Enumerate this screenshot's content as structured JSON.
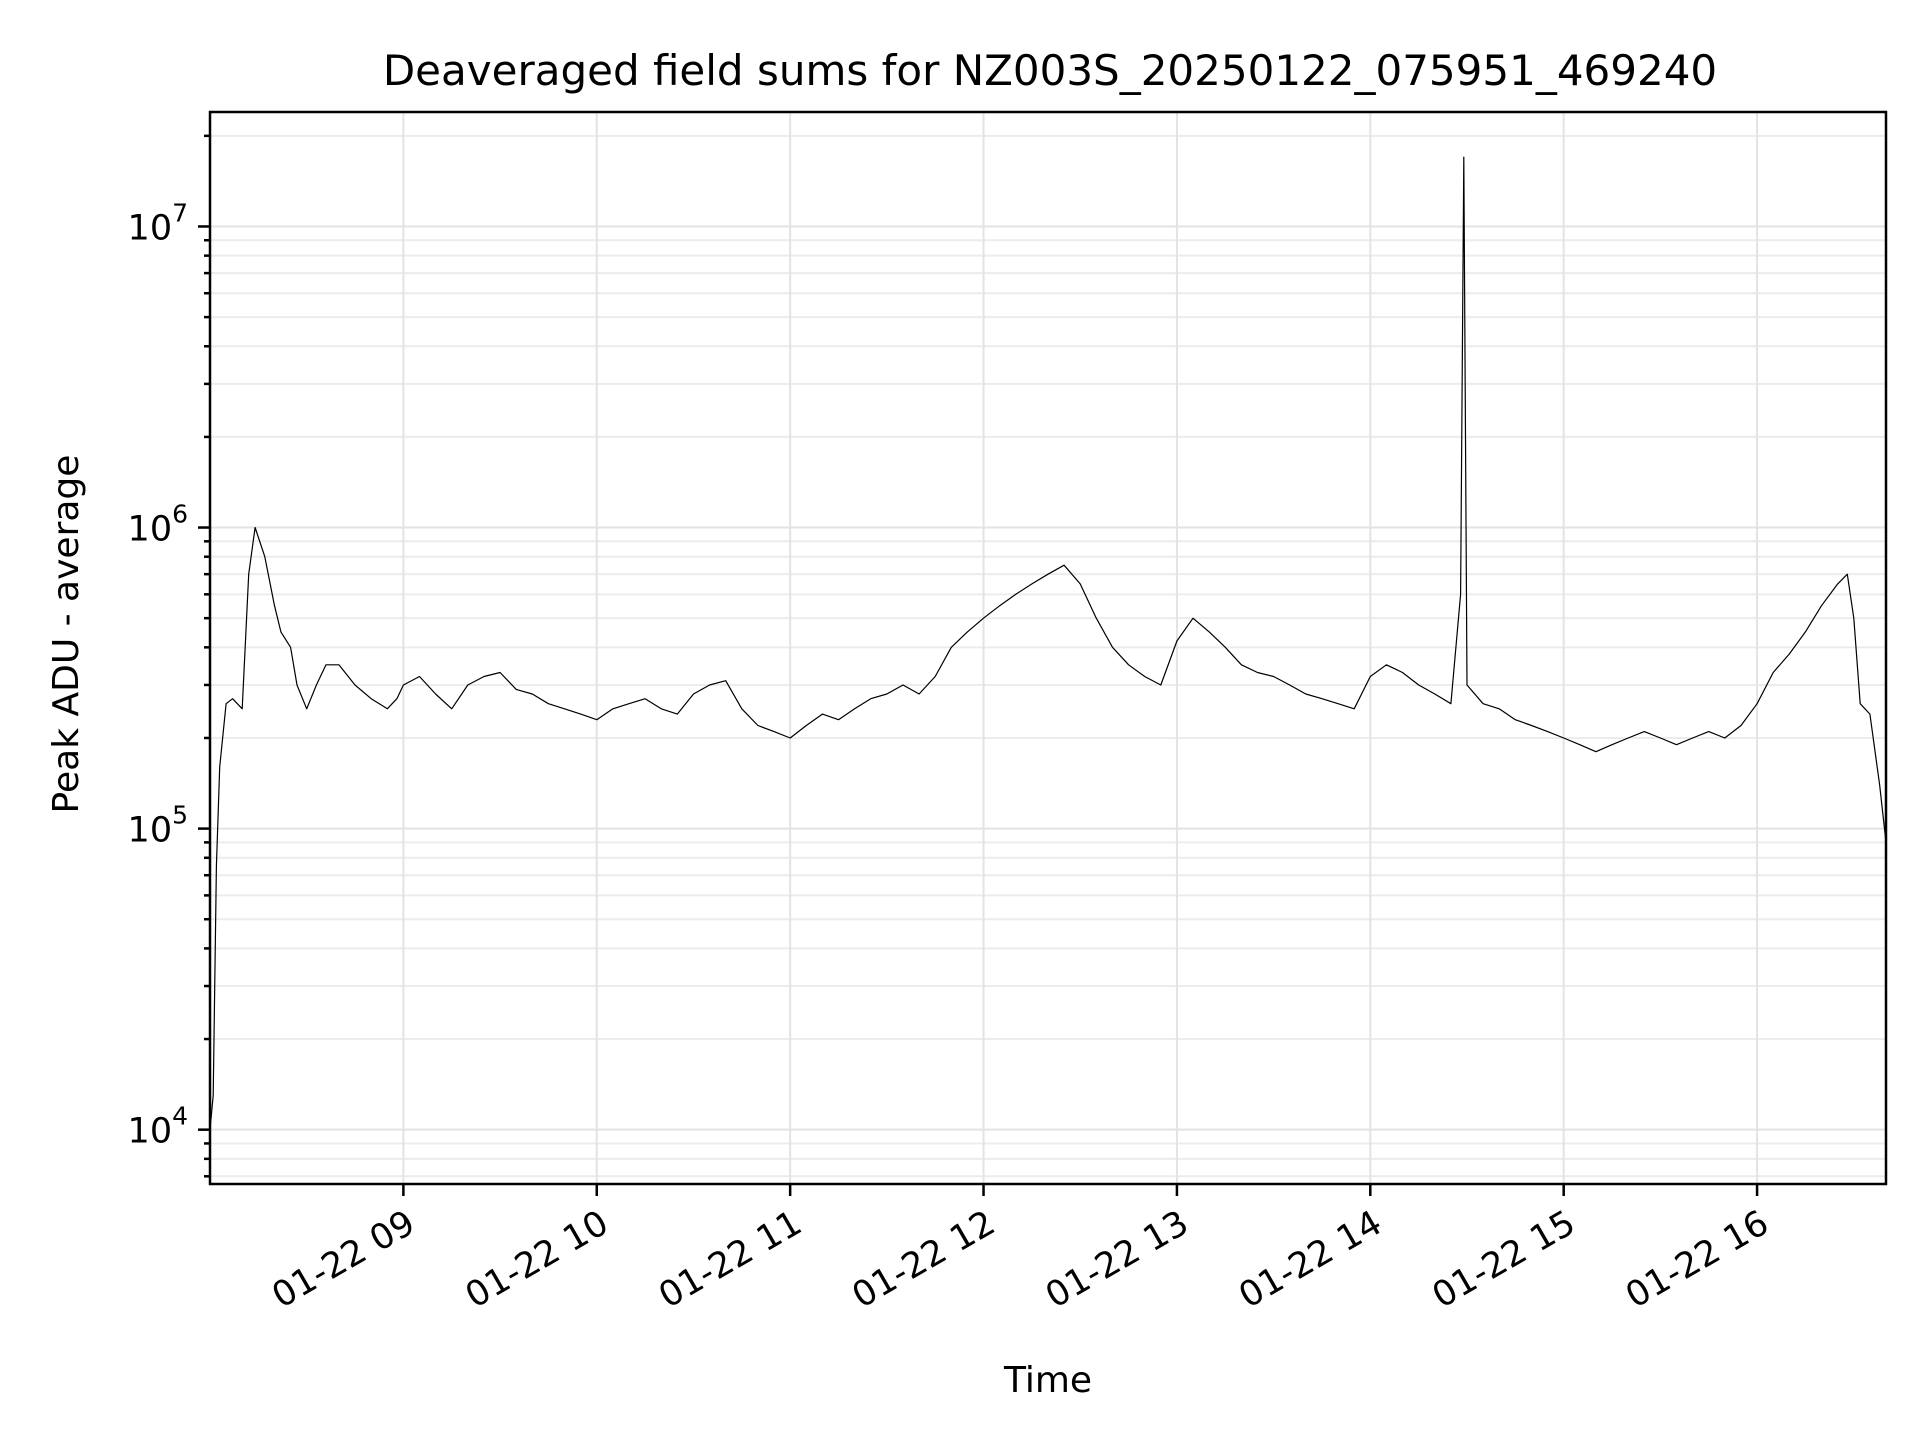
{
  "chart_data": {
    "type": "line",
    "title": "Deaveraged field sums for NZ003S_20250122_075951_469240",
    "xlabel": "Time",
    "ylabel": "Peak ADU - average",
    "yscale": "log",
    "ylim": [
      6600,
      24000000
    ],
    "xlim": [
      "01-22 08:00",
      "01-22 16:40"
    ],
    "grid": true,
    "xticks": [
      {
        "value": "01-22 09:00",
        "label": "01-22 09"
      },
      {
        "value": "01-22 10:00",
        "label": "01-22 10"
      },
      {
        "value": "01-22 11:00",
        "label": "01-22 11"
      },
      {
        "value": "01-22 12:00",
        "label": "01-22 12"
      },
      {
        "value": "01-22 13:00",
        "label": "01-22 13"
      },
      {
        "value": "01-22 14:00",
        "label": "01-22 14"
      },
      {
        "value": "01-22 15:00",
        "label": "01-22 15"
      },
      {
        "value": "01-22 16:00",
        "label": "01-22 16"
      }
    ],
    "yticks": [
      {
        "value": 10000,
        "base": "10",
        "exp": "4"
      },
      {
        "value": 100000,
        "base": "10",
        "exp": "5"
      },
      {
        "value": 1000000,
        "base": "10",
        "exp": "6"
      },
      {
        "value": 10000000,
        "base": "10",
        "exp": "7"
      }
    ],
    "series": [
      {
        "color": "#000000",
        "x": [
          "01-22 08:00",
          "01-22 08:01",
          "01-22 08:02",
          "01-22 08:03",
          "01-22 08:05",
          "01-22 08:07",
          "01-22 08:10",
          "01-22 08:12",
          "01-22 08:14",
          "01-22 08:17",
          "01-22 08:20",
          "01-22 08:22",
          "01-22 08:25",
          "01-22 08:27",
          "01-22 08:30",
          "01-22 08:33",
          "01-22 08:36",
          "01-22 08:40",
          "01-22 08:45",
          "01-22 08:50",
          "01-22 08:55",
          "01-22 08:58",
          "01-22 09:00",
          "01-22 09:05",
          "01-22 09:10",
          "01-22 09:15",
          "01-22 09:20",
          "01-22 09:25",
          "01-22 09:30",
          "01-22 09:35",
          "01-22 09:40",
          "01-22 09:45",
          "01-22 09:50",
          "01-22 09:55",
          "01-22 10:00",
          "01-22 10:05",
          "01-22 10:10",
          "01-22 10:15",
          "01-22 10:20",
          "01-22 10:25",
          "01-22 10:30",
          "01-22 10:35",
          "01-22 10:40",
          "01-22 10:45",
          "01-22 10:50",
          "01-22 10:55",
          "01-22 11:00",
          "01-22 11:05",
          "01-22 11:10",
          "01-22 11:15",
          "01-22 11:20",
          "01-22 11:25",
          "01-22 11:30",
          "01-22 11:35",
          "01-22 11:40",
          "01-22 11:45",
          "01-22 11:50",
          "01-22 11:55",
          "01-22 12:00",
          "01-22 12:05",
          "01-22 12:10",
          "01-22 12:15",
          "01-22 12:20",
          "01-22 12:25",
          "01-22 12:30",
          "01-22 12:35",
          "01-22 12:40",
          "01-22 12:45",
          "01-22 12:50",
          "01-22 12:55",
          "01-22 13:00",
          "01-22 13:05",
          "01-22 13:10",
          "01-22 13:15",
          "01-22 13:20",
          "01-22 13:25",
          "01-22 13:30",
          "01-22 13:35",
          "01-22 13:40",
          "01-22 13:45",
          "01-22 13:50",
          "01-22 13:55",
          "01-22 14:00",
          "01-22 14:05",
          "01-22 14:10",
          "01-22 14:15",
          "01-22 14:20",
          "01-22 14:25",
          "01-22 14:28",
          "01-22 14:29",
          "01-22 14:30",
          "01-22 14:35",
          "01-22 14:40",
          "01-22 14:45",
          "01-22 14:50",
          "01-22 14:55",
          "01-22 15:00",
          "01-22 15:05",
          "01-22 15:10",
          "01-22 15:15",
          "01-22 15:20",
          "01-22 15:25",
          "01-22 15:30",
          "01-22 15:35",
          "01-22 15:40",
          "01-22 15:45",
          "01-22 15:50",
          "01-22 15:55",
          "01-22 16:00",
          "01-22 16:05",
          "01-22 16:10",
          "01-22 16:15",
          "01-22 16:20",
          "01-22 16:25",
          "01-22 16:28",
          "01-22 16:30",
          "01-22 16:32",
          "01-22 16:35",
          "01-22 16:38",
          "01-22 16:40"
        ],
        "y": [
          10000,
          13000,
          75000,
          160000,
          260000,
          270000,
          250000,
          700000,
          1000000,
          800000,
          550000,
          450000,
          400000,
          300000,
          250000,
          300000,
          350000,
          350000,
          300000,
          270000,
          250000,
          270000,
          300000,
          320000,
          280000,
          250000,
          300000,
          320000,
          330000,
          290000,
          280000,
          260000,
          250000,
          240000,
          230000,
          250000,
          260000,
          270000,
          250000,
          240000,
          280000,
          300000,
          310000,
          250000,
          220000,
          210000,
          200000,
          220000,
          240000,
          230000,
          250000,
          270000,
          280000,
          300000,
          280000,
          320000,
          400000,
          450000,
          500000,
          550000,
          600000,
          650000,
          700000,
          750000,
          650000,
          500000,
          400000,
          350000,
          320000,
          300000,
          420000,
          500000,
          450000,
          400000,
          350000,
          330000,
          320000,
          300000,
          280000,
          270000,
          260000,
          250000,
          320000,
          350000,
          330000,
          300000,
          280000,
          260000,
          600000,
          17000000,
          300000,
          260000,
          250000,
          230000,
          220000,
          210000,
          200000,
          190000,
          180000,
          190000,
          200000,
          210000,
          200000,
          190000,
          200000,
          210000,
          200000,
          220000,
          260000,
          330000,
          380000,
          450000,
          550000,
          650000,
          700000,
          500000,
          260000,
          240000,
          140000,
          90000
        ]
      }
    ]
  }
}
